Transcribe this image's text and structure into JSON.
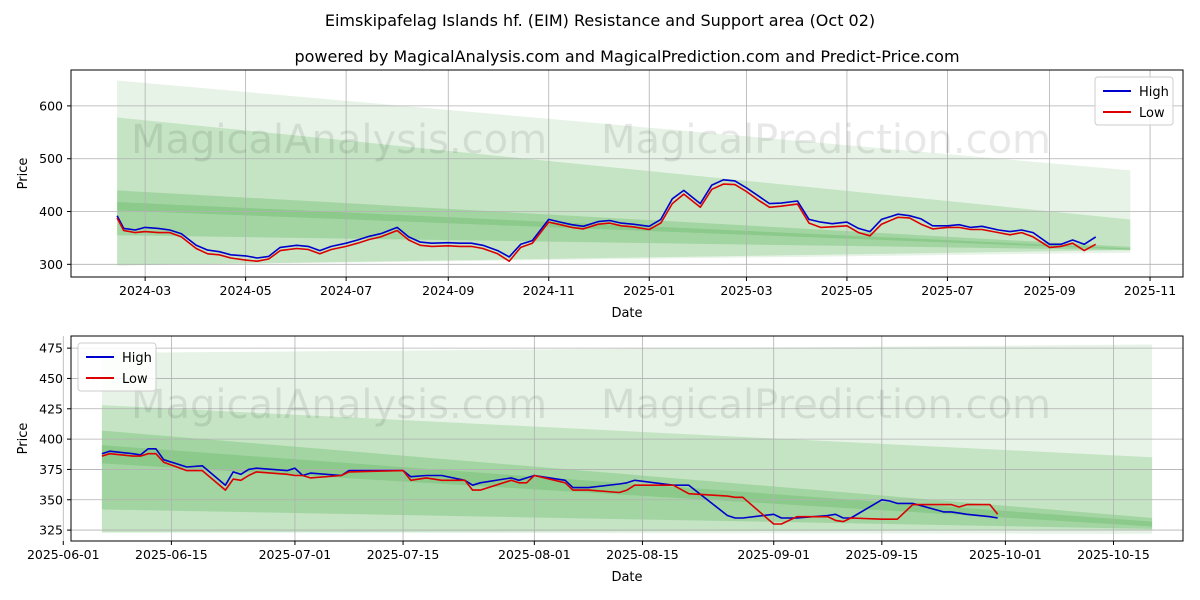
{
  "title": "Eimskipafelag Islands hf. (EIM) Resistance and Support area (Oct 02)",
  "subtitle": "powered by MagicalAnalysis.com and MagicalPrediction.com and Predict-Price.com",
  "watermark": [
    "MagicalAnalysis.com",
    "MagicalPrediction.com"
  ],
  "colors": {
    "high": "#0000cc",
    "low": "#dd0000",
    "band": "#2e9e2e"
  },
  "chart_data": [
    {
      "type": "line",
      "xlabel": "Date",
      "ylabel": "Price",
      "xlim": [
        "2024-01-16",
        "2025-11-21"
      ],
      "ylim": [
        276,
        668
      ],
      "xticks": [
        "2024-03-01",
        "2024-05-01",
        "2024-07-01",
        "2024-09-01",
        "2024-11-01",
        "2025-01-01",
        "2025-03-01",
        "2025-05-01",
        "2025-07-01",
        "2025-09-01",
        "2025-11-01"
      ],
      "xtick_labels": [
        "2024-03",
        "2024-05",
        "2024-07",
        "2024-09",
        "2024-11",
        "2025-01",
        "2025-03",
        "2025-05",
        "2025-07",
        "2025-09",
        "2025-11"
      ],
      "yticks": [
        300,
        400,
        500,
        600
      ],
      "grid": true,
      "legend": "top-right",
      "bands": [
        {
          "x": [
            "2024-02-13",
            "2025-10-20"
          ],
          "upper": [
            648,
            478
          ],
          "lower": [
            298,
            322
          ]
        },
        {
          "x": [
            "2024-02-13",
            "2025-10-20"
          ],
          "upper": [
            578,
            385
          ],
          "lower": [
            298,
            327
          ]
        },
        {
          "x": [
            "2024-02-13",
            "2025-10-20"
          ],
          "upper": [
            440,
            333
          ],
          "lower": [
            355,
            327
          ]
        },
        {
          "x": [
            "2024-02-13",
            "2025-10-20"
          ],
          "upper": [
            418,
            330
          ],
          "lower": [
            402,
            328
          ]
        }
      ],
      "series": [
        {
          "name": "High",
          "x": [
            "2024-02-13",
            "2024-02-17",
            "2024-02-24",
            "2024-03-01",
            "2024-03-09",
            "2024-03-16",
            "2024-03-23",
            "2024-04-01",
            "2024-04-08",
            "2024-04-15",
            "2024-04-22",
            "2024-05-01",
            "2024-05-08",
            "2024-05-15",
            "2024-05-22",
            "2024-06-01",
            "2024-06-08",
            "2024-06-15",
            "2024-06-22",
            "2024-07-01",
            "2024-07-08",
            "2024-07-15",
            "2024-07-22",
            "2024-08-01",
            "2024-08-08",
            "2024-08-15",
            "2024-08-22",
            "2024-09-01",
            "2024-09-08",
            "2024-09-15",
            "2024-09-22",
            "2024-10-01",
            "2024-10-08",
            "2024-10-15",
            "2024-10-22",
            "2024-11-01",
            "2024-11-08",
            "2024-11-15",
            "2024-11-22",
            "2024-12-01",
            "2024-12-08",
            "2024-12-15",
            "2024-12-22",
            "2025-01-01",
            "2025-01-08",
            "2025-01-15",
            "2025-01-22",
            "2025-02-01",
            "2025-02-08",
            "2025-02-15",
            "2025-02-22",
            "2025-03-01",
            "2025-03-08",
            "2025-03-15",
            "2025-03-22",
            "2025-04-01",
            "2025-04-08",
            "2025-04-15",
            "2025-04-22",
            "2025-05-01",
            "2025-05-08",
            "2025-05-15",
            "2025-05-22",
            "2025-06-01",
            "2025-06-08",
            "2025-06-15",
            "2025-06-22",
            "2025-07-01",
            "2025-07-08",
            "2025-07-15",
            "2025-07-22",
            "2025-08-01",
            "2025-08-08",
            "2025-08-15",
            "2025-08-22",
            "2025-09-01",
            "2025-09-08",
            "2025-09-15",
            "2025-09-22",
            "2025-09-29"
          ],
          "y": [
            392,
            368,
            365,
            370,
            368,
            365,
            358,
            336,
            327,
            324,
            318,
            316,
            312,
            315,
            332,
            336,
            334,
            326,
            334,
            340,
            346,
            353,
            358,
            370,
            352,
            342,
            340,
            341,
            340,
            340,
            336,
            326,
            314,
            338,
            345,
            385,
            380,
            375,
            372,
            381,
            383,
            378,
            376,
            372,
            385,
            424,
            440,
            415,
            450,
            460,
            458,
            445,
            430,
            415,
            416,
            420,
            385,
            380,
            377,
            380,
            368,
            362,
            385,
            395,
            392,
            386,
            373,
            373,
            375,
            370,
            372,
            365,
            362,
            365,
            360,
            338,
            338,
            346,
            338,
            352
          ]
        },
        {
          "name": "Low",
          "x": [
            "2024-02-13",
            "2024-02-17",
            "2024-02-24",
            "2024-03-01",
            "2024-03-09",
            "2024-03-16",
            "2024-03-23",
            "2024-04-01",
            "2024-04-08",
            "2024-04-15",
            "2024-04-22",
            "2024-05-01",
            "2024-05-08",
            "2024-05-15",
            "2024-05-22",
            "2024-06-01",
            "2024-06-08",
            "2024-06-15",
            "2024-06-22",
            "2024-07-01",
            "2024-07-08",
            "2024-07-15",
            "2024-07-22",
            "2024-08-01",
            "2024-08-08",
            "2024-08-15",
            "2024-08-22",
            "2024-09-01",
            "2024-09-08",
            "2024-09-15",
            "2024-09-22",
            "2024-10-01",
            "2024-10-08",
            "2024-10-15",
            "2024-10-22",
            "2024-11-01",
            "2024-11-08",
            "2024-11-15",
            "2024-11-22",
            "2024-12-01",
            "2024-12-08",
            "2024-12-15",
            "2024-12-22",
            "2025-01-01",
            "2025-01-08",
            "2025-01-15",
            "2025-01-22",
            "2025-02-01",
            "2025-02-08",
            "2025-02-15",
            "2025-02-22",
            "2025-03-01",
            "2025-03-08",
            "2025-03-15",
            "2025-03-22",
            "2025-04-01",
            "2025-04-08",
            "2025-04-15",
            "2025-04-22",
            "2025-05-01",
            "2025-05-08",
            "2025-05-15",
            "2025-05-22",
            "2025-06-01",
            "2025-06-08",
            "2025-06-15",
            "2025-06-22",
            "2025-07-01",
            "2025-07-08",
            "2025-07-15",
            "2025-07-22",
            "2025-08-01",
            "2025-08-08",
            "2025-08-15",
            "2025-08-22",
            "2025-09-01",
            "2025-09-08",
            "2025-09-15",
            "2025-09-22",
            "2025-09-29"
          ],
          "y": [
            388,
            364,
            360,
            362,
            360,
            360,
            352,
            330,
            320,
            318,
            312,
            308,
            306,
            310,
            326,
            330,
            328,
            320,
            328,
            334,
            340,
            347,
            352,
            364,
            346,
            336,
            334,
            335,
            334,
            334,
            330,
            320,
            306,
            332,
            340,
            380,
            375,
            370,
            367,
            376,
            378,
            373,
            371,
            366,
            378,
            415,
            433,
            408,
            442,
            452,
            451,
            438,
            422,
            408,
            410,
            414,
            378,
            370,
            371,
            373,
            360,
            354,
            376,
            389,
            388,
            376,
            367,
            370,
            370,
            366,
            366,
            360,
            356,
            360,
            352,
            332,
            334,
            340,
            326,
            338
          ]
        }
      ]
    },
    {
      "type": "line",
      "xlabel": "Date",
      "ylabel": "Price",
      "xlim": [
        "2025-06-02",
        "2025-10-24"
      ],
      "ylim": [
        316,
        485
      ],
      "xticks": [
        "2025-06-01",
        "2025-06-15",
        "2025-07-01",
        "2025-07-15",
        "2025-08-01",
        "2025-08-15",
        "2025-09-01",
        "2025-09-15",
        "2025-10-01",
        "2025-10-15"
      ],
      "xtick_labels": [
        "2025-06-01",
        "2025-06-15",
        "2025-07-01",
        "2025-07-15",
        "2025-08-01",
        "2025-08-15",
        "2025-09-01",
        "2025-09-15",
        "2025-10-01",
        "2025-10-15"
      ],
      "yticks": [
        325,
        350,
        375,
        400,
        425,
        450,
        475
      ],
      "grid": true,
      "legend": "top-left",
      "bands": [
        {
          "x": [
            "2025-06-06",
            "2025-10-20"
          ],
          "upper": [
            471,
            478
          ],
          "lower": [
            323,
            322
          ]
        },
        {
          "x": [
            "2025-06-06",
            "2025-10-20"
          ],
          "upper": [
            428,
            385
          ],
          "lower": [
            323,
            325
          ]
        },
        {
          "x": [
            "2025-06-06",
            "2025-10-20"
          ],
          "upper": [
            407,
            335
          ],
          "lower": [
            342,
            326
          ]
        },
        {
          "x": [
            "2025-06-06",
            "2025-10-20"
          ],
          "upper": [
            395,
            332
          ],
          "lower": [
            380,
            328
          ]
        }
      ],
      "series": [
        {
          "name": "High",
          "x": [
            "2025-06-06",
            "2025-06-07",
            "2025-06-10",
            "2025-06-11",
            "2025-06-12",
            "2025-06-13",
            "2025-06-14",
            "2025-06-17",
            "2025-06-19",
            "2025-06-22",
            "2025-06-23",
            "2025-06-24",
            "2025-06-25",
            "2025-06-26",
            "2025-06-30",
            "2025-07-01",
            "2025-07-02",
            "2025-07-03",
            "2025-07-07",
            "2025-07-08",
            "2025-07-15",
            "2025-07-16",
            "2025-07-18",
            "2025-07-20",
            "2025-07-23",
            "2025-07-24",
            "2025-07-25",
            "2025-07-29",
            "2025-07-30",
            "2025-07-31",
            "2025-08-01",
            "2025-08-05",
            "2025-08-06",
            "2025-08-07",
            "2025-08-08",
            "2025-08-12",
            "2025-08-13",
            "2025-08-14",
            "2025-08-19",
            "2025-08-21",
            "2025-08-26",
            "2025-08-27",
            "2025-08-28",
            "2025-09-01",
            "2025-09-02",
            "2025-09-04",
            "2025-09-08",
            "2025-09-09",
            "2025-09-10",
            "2025-09-11",
            "2025-09-15",
            "2025-09-16",
            "2025-09-17",
            "2025-09-19",
            "2025-09-23",
            "2025-09-24",
            "2025-09-25",
            "2025-09-26",
            "2025-09-29",
            "2025-09-30"
          ],
          "y": [
            388,
            390,
            388,
            387,
            392,
            392,
            383,
            377,
            378,
            362,
            373,
            371,
            375,
            376,
            374,
            376,
            370,
            372,
            370,
            374,
            374,
            369,
            370,
            370,
            366,
            362,
            364,
            368,
            366,
            368,
            370,
            366,
            360,
            360,
            360,
            363,
            364,
            366,
            362,
            362,
            337,
            335,
            335,
            338,
            335,
            335,
            337,
            338,
            335,
            335,
            350,
            349,
            347,
            347,
            340,
            340,
            339,
            338,
            336,
            335
          ]
        },
        {
          "name": "Low",
          "x": [
            "2025-06-06",
            "2025-06-07",
            "2025-06-10",
            "2025-06-11",
            "2025-06-12",
            "2025-06-13",
            "2025-06-14",
            "2025-06-17",
            "2025-06-19",
            "2025-06-22",
            "2025-06-23",
            "2025-06-24",
            "2025-06-25",
            "2025-06-26",
            "2025-06-30",
            "2025-07-01",
            "2025-07-02",
            "2025-07-03",
            "2025-07-07",
            "2025-07-08",
            "2025-07-15",
            "2025-07-16",
            "2025-07-18",
            "2025-07-20",
            "2025-07-23",
            "2025-07-24",
            "2025-07-25",
            "2025-07-29",
            "2025-07-30",
            "2025-07-31",
            "2025-08-01",
            "2025-08-05",
            "2025-08-06",
            "2025-08-07",
            "2025-08-08",
            "2025-08-12",
            "2025-08-13",
            "2025-08-14",
            "2025-08-19",
            "2025-08-21",
            "2025-08-26",
            "2025-08-27",
            "2025-08-28",
            "2025-09-01",
            "2025-09-02",
            "2025-09-04",
            "2025-09-08",
            "2025-09-09",
            "2025-09-10",
            "2025-09-11",
            "2025-09-15",
            "2025-09-16",
            "2025-09-17",
            "2025-09-19",
            "2025-09-23",
            "2025-09-24",
            "2025-09-25",
            "2025-09-26",
            "2025-09-29",
            "2025-09-30"
          ],
          "y": [
            386,
            388,
            386,
            386,
            388,
            388,
            381,
            374,
            374,
            358,
            367,
            366,
            370,
            373,
            371,
            370,
            370,
            368,
            370,
            373,
            374,
            366,
            368,
            366,
            366,
            358,
            358,
            366,
            364,
            364,
            370,
            364,
            358,
            358,
            358,
            356,
            358,
            362,
            362,
            355,
            353,
            352,
            352,
            330,
            330,
            336,
            336,
            333,
            332,
            335,
            334,
            334,
            334,
            346,
            346,
            346,
            344,
            346,
            346,
            338
          ]
        }
      ]
    }
  ]
}
